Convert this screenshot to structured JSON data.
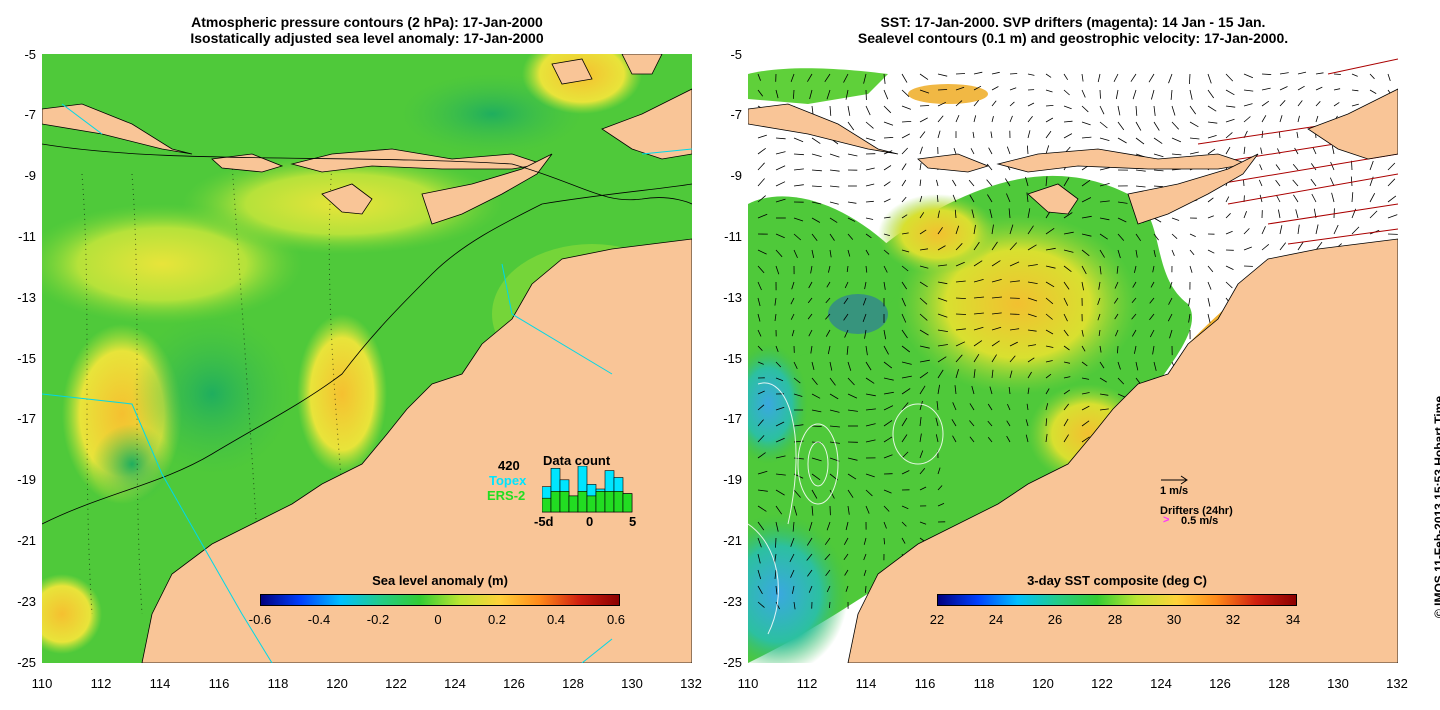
{
  "left_panel": {
    "title_line1": "Atmospheric pressure contours (2 hPa): 17-Jan-2000",
    "title_line2": "Isostatically adjusted sea level anomaly: 17-Jan-2000",
    "y_ticks": [
      "-5",
      "-7",
      "-9",
      "-11",
      "-13",
      "-15",
      "-17",
      "-19",
      "-21",
      "-23",
      "-25"
    ],
    "x_ticks": [
      "110",
      "112",
      "114",
      "116",
      "118",
      "120",
      "122",
      "124",
      "126",
      "128",
      "130",
      "132"
    ],
    "colorbar": {
      "title": "Sea level anomaly (m)",
      "labels": [
        "-0.6",
        "-0.4",
        "-0.2",
        "0",
        "0.2",
        "0.4",
        "0.6"
      ]
    },
    "data_count": {
      "number": "420",
      "title": "Data count",
      "topex_label": "Topex",
      "ers2_label": "ERS-2",
      "axis_labels": [
        "-5d",
        "0",
        "5"
      ],
      "topex_color": "#00e5ff",
      "ers2_color": "#22dd22",
      "topex_values": [
        0.55,
        0.95,
        0.7,
        0.35,
        1.0,
        0.6,
        0.5,
        0.9,
        0.75,
        0.4
      ],
      "ers2_values": [
        0.3,
        0.45,
        0.45,
        0.35,
        0.45,
        0.35,
        0.45,
        0.45,
        0.45,
        0.4
      ]
    }
  },
  "right_panel": {
    "title_line1": "SST: 17-Jan-2000. SVP drifters (magenta): 14 Jan - 15 Jan.",
    "title_line2": "Sealevel contours (0.1 m) and geostrophic velocity: 17-Jan-2000.",
    "y_ticks": [
      "-5",
      "-7",
      "-9",
      "-11",
      "-13",
      "-15",
      "-17",
      "-19",
      "-21",
      "-23",
      "-25"
    ],
    "x_ticks": [
      "110",
      "112",
      "114",
      "116",
      "118",
      "120",
      "122",
      "124",
      "126",
      "128",
      "130",
      "132"
    ],
    "colorbar": {
      "title": "3-day SST composite (deg C)",
      "labels": [
        "22",
        "24",
        "26",
        "28",
        "30",
        "32",
        "34"
      ]
    },
    "vector_scale_label": "1 m/s",
    "drifters_label": "Drifters (24hr)",
    "drifter_scale_label": "0.5 m/s"
  },
  "credit": "© IMOS 11-Feb-2013 15:53 Hobart Time",
  "colors": {
    "land": "#f9c597",
    "ocean_green": "#4fc93a",
    "cyan_track": "#00d8e8"
  }
}
